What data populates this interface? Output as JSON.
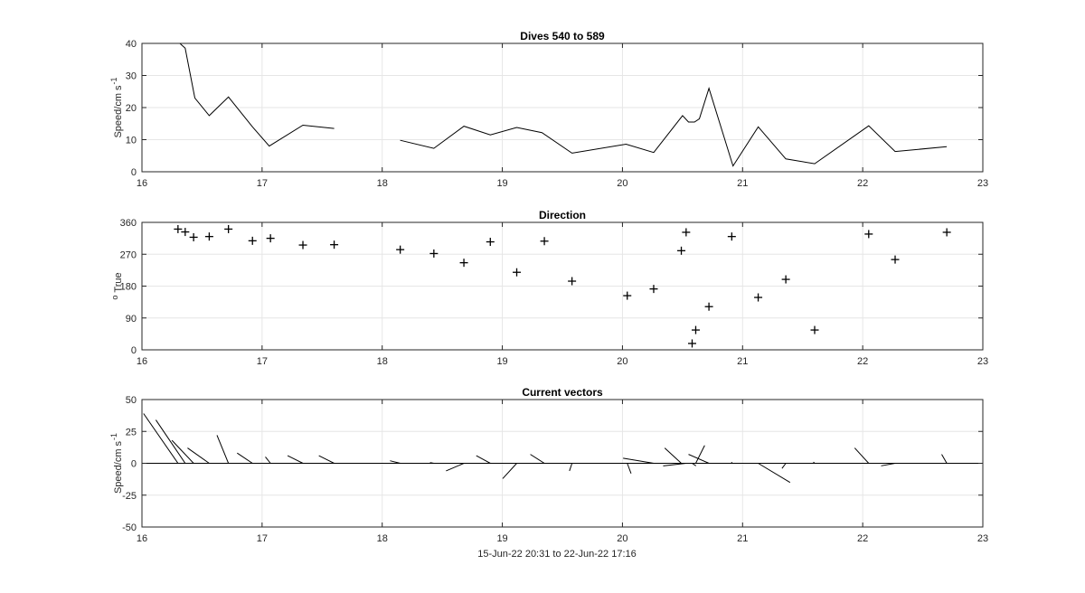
{
  "chart_data": [
    {
      "type": "line",
      "title": "Dives 540 to 589",
      "ylabel": "Speed/cm s",
      "ylabel_sup": "-1",
      "xlim": [
        16,
        23
      ],
      "ylim": [
        0,
        40
      ],
      "xticks": [
        "16",
        "17",
        "18",
        "19",
        "20",
        "21",
        "22",
        "23"
      ],
      "yticks": [
        "0",
        "10",
        "20",
        "30",
        "40"
      ],
      "grid": true,
      "series": [
        {
          "segments": [
            [
              [
                16.3,
                40.5
              ],
              [
                16.36,
                38.5
              ],
              [
                16.44,
                23
              ],
              [
                16.56,
                17.5
              ],
              [
                16.72,
                23.3
              ],
              [
                16.92,
                14
              ],
              [
                17.06,
                8
              ],
              [
                17.34,
                14.5
              ],
              [
                17.6,
                13.5
              ]
            ],
            [
              [
                18.15,
                9.8
              ],
              [
                18.43,
                7.3
              ],
              [
                18.68,
                14.2
              ],
              [
                18.9,
                11.5
              ],
              [
                19.12,
                13.8
              ],
              [
                19.33,
                12.2
              ],
              [
                19.58,
                5.8
              ],
              [
                20.03,
                8.6
              ],
              [
                20.26,
                6
              ],
              [
                20.5,
                17.5
              ],
              [
                20.55,
                15.5
              ],
              [
                20.6,
                15.5
              ],
              [
                20.64,
                16.5
              ],
              [
                20.72,
                26
              ],
              [
                20.92,
                1.8
              ],
              [
                21.13,
                14
              ],
              [
                21.36,
                4
              ],
              [
                21.6,
                2.5
              ],
              [
                22.05,
                14.3
              ],
              [
                22.27,
                6.3
              ],
              [
                22.7,
                7.8
              ]
            ]
          ]
        }
      ]
    },
    {
      "type": "scatter",
      "title": "Direction",
      "ylabel": "True",
      "ylabel_prefix": "o",
      "xlim": [
        16,
        23
      ],
      "ylim": [
        0,
        360
      ],
      "xticks": [
        "16",
        "17",
        "18",
        "19",
        "20",
        "21",
        "22",
        "23"
      ],
      "yticks": [
        "0",
        "90",
        "180",
        "270",
        "360"
      ],
      "grid": true,
      "marker": "+",
      "points": [
        [
          16.3,
          341
        ],
        [
          16.36,
          333
        ],
        [
          16.43,
          318
        ],
        [
          16.56,
          320
        ],
        [
          16.72,
          341
        ],
        [
          16.92,
          308
        ],
        [
          17.07,
          315
        ],
        [
          17.34,
          296
        ],
        [
          17.6,
          297
        ],
        [
          18.15,
          283
        ],
        [
          18.43,
          272
        ],
        [
          18.68,
          246
        ],
        [
          18.9,
          305
        ],
        [
          19.12,
          219
        ],
        [
          19.35,
          307
        ],
        [
          19.58,
          194
        ],
        [
          20.04,
          153
        ],
        [
          20.26,
          172
        ],
        [
          20.49,
          280
        ],
        [
          20.53,
          332
        ],
        [
          20.58,
          18
        ],
        [
          20.61,
          56
        ],
        [
          20.72,
          122
        ],
        [
          20.91,
          320
        ],
        [
          21.13,
          148
        ],
        [
          21.36,
          199
        ],
        [
          21.6,
          56
        ],
        [
          22.05,
          327
        ],
        [
          22.27,
          255
        ],
        [
          22.7,
          332
        ]
      ]
    },
    {
      "type": "vector",
      "title": "Current vectors",
      "ylabel": "Speed/cm s",
      "ylabel_sup": "-1",
      "xlabel": "15-Jun-22 20:31 to 22-Jun-22 17:16",
      "xlim": [
        16,
        23
      ],
      "ylim": [
        -50,
        50
      ],
      "xticks": [
        "16",
        "17",
        "18",
        "19",
        "20",
        "21",
        "22",
        "23"
      ],
      "yticks": [
        "-50",
        "-25",
        "0",
        "25",
        "50"
      ],
      "grid": true,
      "baseline": 0,
      "vectors": [
        [
          16.3,
          -27,
          39
        ],
        [
          16.36,
          -23,
          34
        ],
        [
          16.43,
          -17,
          18
        ],
        [
          16.56,
          -17,
          12
        ],
        [
          16.72,
          -9,
          22
        ],
        [
          16.92,
          -12,
          8
        ],
        [
          17.07,
          -4,
          5
        ],
        [
          17.34,
          -12,
          6
        ],
        [
          17.6,
          -12,
          6
        ],
        [
          18.15,
          -8,
          2
        ],
        [
          18.43,
          -3,
          0.5
        ],
        [
          18.68,
          -14,
          -6
        ],
        [
          18.9,
          -11,
          6
        ],
        [
          19.12,
          -11,
          -12
        ],
        [
          19.35,
          -11,
          7
        ],
        [
          19.58,
          -2,
          -6
        ],
        [
          20.04,
          3,
          -8
        ],
        [
          20.26,
          -24,
          4
        ],
        [
          20.49,
          -13,
          12
        ],
        [
          20.53,
          -18,
          -2
        ],
        [
          20.58,
          3,
          -2
        ],
        [
          20.61,
          7,
          14
        ],
        [
          20.72,
          -16,
          7
        ],
        [
          20.91,
          0,
          1
        ],
        [
          21.13,
          25,
          -15
        ],
        [
          21.36,
          -3,
          -4
        ],
        [
          21.6,
          -1,
          1
        ],
        [
          22.05,
          -11,
          12
        ],
        [
          22.27,
          -11,
          -2
        ],
        [
          22.7,
          -4,
          7
        ]
      ]
    }
  ]
}
